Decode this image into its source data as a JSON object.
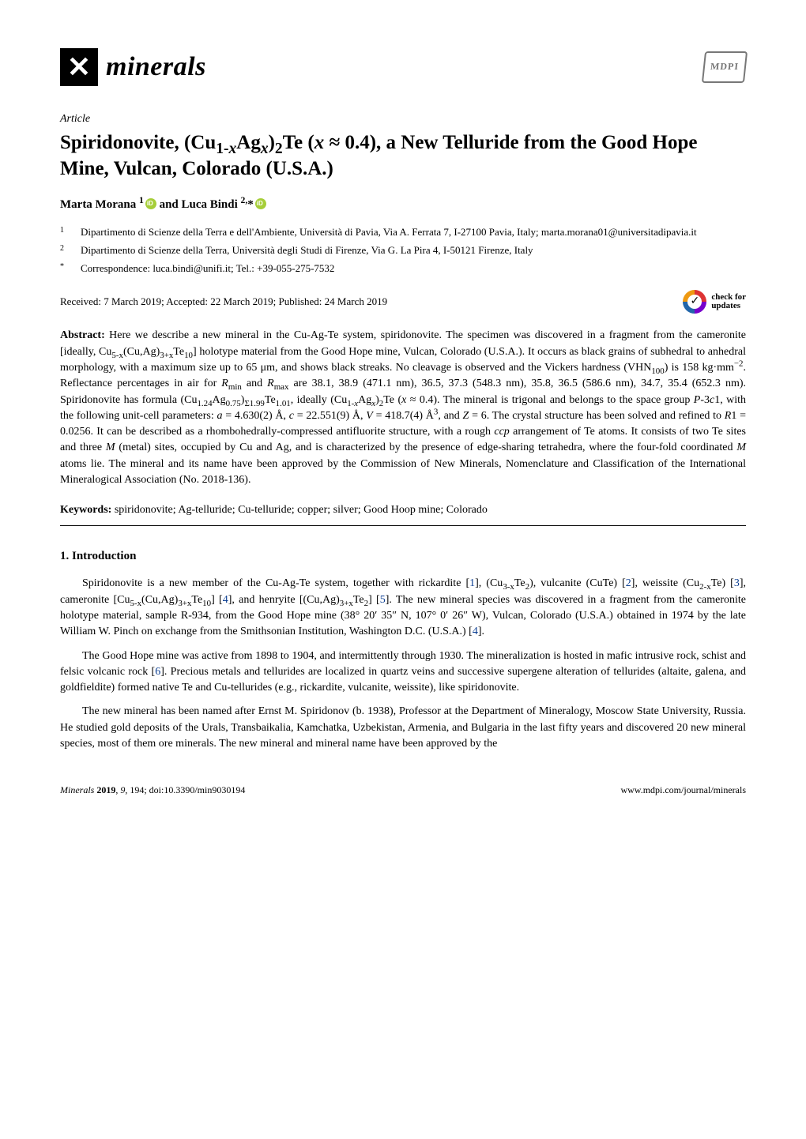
{
  "journal": {
    "logo_glyph": "✕",
    "logo_word": "minerals",
    "publisher_abbr": "MDPI"
  },
  "article_type": "Article",
  "title_html": "Spiridonovite, (Cu<sub>1-<i>x</i></sub>Ag<sub><i>x</i></sub>)<sub>2</sub>Te (<i>x</i> ≈ 0.4), a New Telluride from the Good Hope Mine, Vulcan, Colorado (U.S.A.)",
  "authors_html": "Marta Morana <sup>1</sup><span class=\"orcid\" data-name=\"orcid-icon\" data-interactable=\"false\"></span> and Luca Bindi <sup>2,</sup>*<span class=\"orcid\" data-name=\"orcid-icon\" data-interactable=\"false\"></span>",
  "affiliations": [
    {
      "num": "1",
      "text": "Dipartimento di Scienze della Terra e dell'Ambiente, Università di Pavia, Via A. Ferrata 7, I-27100 Pavia, Italy; marta.morana01@universitadipavia.it"
    },
    {
      "num": "2",
      "text": "Dipartimento di Scienze della Terra, Università degli Studi di Firenze, Via G. La Pira 4, I-50121 Firenze, Italy"
    },
    {
      "num": "*",
      "text": "Correspondence: luca.bindi@unifi.it; Tel.: +39-055-275-7532"
    }
  ],
  "dates_line": "Received: 7 March 2019; Accepted: 22 March 2019; Published: 24 March 2019",
  "updates_badge": {
    "symbol": "✓",
    "line1": "check for",
    "line2": "updates"
  },
  "abstract_label": "Abstract:",
  "abstract_html": "Here we describe a new mineral in the Cu-Ag-Te system, spiridonovite. The specimen was discovered in a fragment from the cameronite [ideally, Cu<sub>5-x</sub>(Cu,Ag)<sub>3+x</sub>Te<sub>10</sub>] holotype material from the Good Hope mine, Vulcan, Colorado (U.S.A.). It occurs as black grains of subhedral to anhedral morphology, with a maximum size up to 65 μm, and shows black streaks. No cleavage is observed and the Vickers hardness (VHN<sub>100</sub>) is 158 kg·mm<sup>−2</sup>. Reflectance percentages in air for <i>R</i><sub>min</sub> and <i>R</i><sub>max</sub> are 38.1, 38.9 (471.1 nm), 36.5, 37.3 (548.3 nm), 35.8, 36.5 (586.6 nm), 34.7, 35.4 (652.3 nm). Spiridonovite has formula (Cu<sub>1.24</sub>Ag<sub>0.75</sub>)<sub>Σ1.99</sub>Te<sub>1.01</sub>, ideally (Cu<sub>1-<i>x</i></sub>Ag<sub><i>x</i></sub>)<sub>2</sub>Te (<i>x</i> ≈ 0.4). The mineral is trigonal and belongs to the space group <i>P</i>-3<i>c</i>1, with the following unit-cell parameters: <i>a</i> = 4.630(2) Å, <i>c</i> = 22.551(9) Å, <i>V</i> = 418.7(4) Å<sup>3</sup>, and <i>Z</i> = 6. The crystal structure has been solved and refined to <i>R</i>1 = 0.0256. It can be described as a rhombohedrally-compressed antifluorite structure, with a rough <i>ccp</i> arrangement of Te atoms. It consists of two Te sites and three <i>M</i> (metal) sites, occupied by Cu and Ag, and is characterized by the presence of edge-sharing tetrahedra, where the four-fold coordinated <i>M</i> atoms lie. The mineral and its name have been approved by the Commission of New Minerals, Nomenclature and Classification of the International Mineralogical Association (No. 2018-136).",
  "keywords_label": "Keywords:",
  "keywords_text": "spiridonovite; Ag-telluride; Cu-telluride; copper; silver; Good Hoop mine; Colorado",
  "section1": {
    "heading": "1. Introduction",
    "paragraphs_html": [
      "Spiridonovite is a new member of the Cu-Ag-Te system, together with rickardite [<span class=\"ref\">1</span>], (Cu<sub>3-x</sub>Te<sub>2</sub>), vulcanite (CuTe) [<span class=\"ref\">2</span>], weissite (Cu<sub>2-x</sub>Te) [<span class=\"ref\">3</span>], cameronite [Cu<sub>5-x</sub>(Cu,Ag)<sub>3+x</sub>Te<sub>10</sub>] [<span class=\"ref\">4</span>], and henryite [(Cu,Ag)<sub>3+x</sub>Te<sub>2</sub>] [<span class=\"ref\">5</span>]. The new mineral species was discovered in a fragment from the cameronite holotype material, sample R-934, from the Good Hope mine (38° 20′ 35″ N, 107° 0′ 26″ W), Vulcan, Colorado (U.S.A.) obtained in 1974 by the late William W. Pinch on exchange from the Smithsonian Institution, Washington D.C. (U.S.A.) [<span class=\"ref\">4</span>].",
      "The Good Hope mine was active from 1898 to 1904, and intermittently through 1930. The mineralization is hosted in mafic intrusive rock, schist and felsic volcanic rock [<span class=\"ref\">6</span>]. Precious metals and tellurides are localized in quartz veins and successive supergene alteration of tellurides (altaite, galena, and goldfieldite) formed native Te and Cu-tellurides (e.g., rickardite, vulcanite, weissite), like spiridonovite.",
      "The new mineral has been named after Ernst M. Spiridonov (b. 1938), Professor at the Department of Mineralogy, Moscow State University, Russia. He studied gold deposits of the Urals, Transbaikalia, Kamchatka, Uzbekistan, Armenia, and Bulgaria in the last fifty years and discovered 20 new mineral species, most of them ore minerals. The new mineral and mineral name have been approved by the"
    ]
  },
  "footer": {
    "left_html": "<i>Minerals</i> <b>2019</b>, <i>9</i>, 194; doi:10.3390/min9030194",
    "right": "www.mdpi.com/journal/minerals"
  },
  "colors": {
    "ref": "#0a3d91",
    "orcid": "#a6ce39",
    "mdpi_border": "#777777",
    "text": "#000000",
    "bg": "#ffffff"
  }
}
